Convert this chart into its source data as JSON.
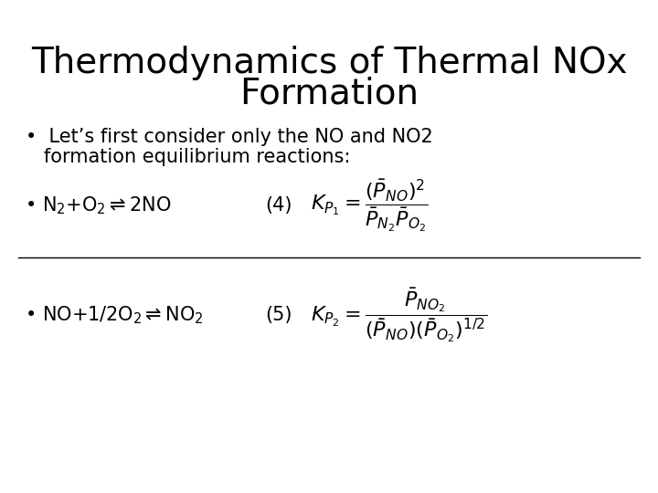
{
  "title_line1": "Thermodynamics of Thermal NOx",
  "title_line2": "Formation",
  "title_fontsize": 28,
  "title_fontweight": "normal",
  "bullet1_line1": "•  Let’s first consider only the NO and NO2",
  "bullet1_line2": "   formation equilibrium reactions:",
  "bullet1_fontsize": 15,
  "reaction1_bullet": "•",
  "reaction1_text": "$\\mathrm{N_2{+}O_2{\\rightleftharpoons}2NO}$",
  "reaction1_num": "(4)",
  "reaction1_kp": "$K_{P_1} = \\dfrac{(\\bar{P}_{NO})^2}{\\bar{P}_{N_2}\\bar{P}_{O_2}}$",
  "reaction2_bullet": "•",
  "reaction2_text": "$\\mathrm{NO{+}1/2O_2{\\rightleftharpoons}NO_2}$",
  "reaction2_num": "(5)",
  "reaction2_kp": "$K_{P_2} = \\dfrac{\\bar{P}_{NO_2}}{(\\bar{P}_{NO})(\\bar{P}_{O_2})^{1/2}}$",
  "reaction_fontsize": 15,
  "kp_fontsize": 16,
  "background_color": "#ffffff",
  "text_color": "#000000",
  "line_color": "#000000",
  "figsize": [
    7.2,
    5.4
  ],
  "dpi": 100
}
